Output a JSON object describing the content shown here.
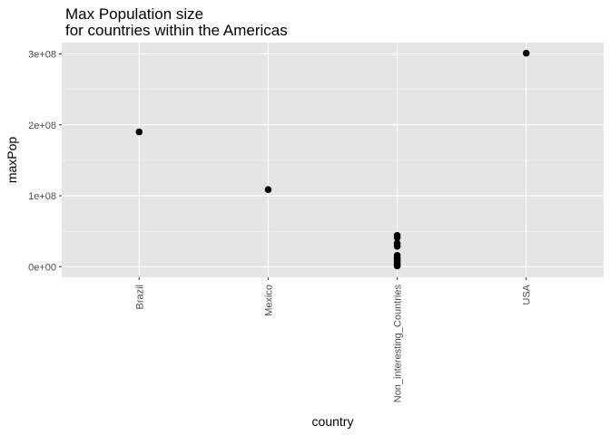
{
  "chart_data": {
    "type": "scatter",
    "title_line1": "Max Population size",
    "title_line2": "for countries within the Americas",
    "xlabel": "country",
    "ylabel": "maxPop",
    "categories": [
      "Brazil",
      "Mexico",
      "Non_interesting_Countries",
      "USA"
    ],
    "y_ticks": [
      0,
      100000000,
      200000000,
      300000000
    ],
    "y_tick_labels": [
      "0e+00",
      "1e+08",
      "2e+08",
      "3e+08"
    ],
    "ylim": [
      -15000000,
      316000000
    ],
    "grid": true,
    "points": [
      {
        "x": "Brazil",
        "y": 190000000
      },
      {
        "x": "Mexico",
        "y": 108700000
      },
      {
        "x": "Non_interesting_Countries",
        "y": 44000000
      },
      {
        "x": "Non_interesting_Countries",
        "y": 41000000
      },
      {
        "x": "Non_interesting_Countries",
        "y": 33000000
      },
      {
        "x": "Non_interesting_Countries",
        "y": 28700000
      },
      {
        "x": "Non_interesting_Countries",
        "y": 16000000
      },
      {
        "x": "Non_interesting_Countries",
        "y": 13000000
      },
      {
        "x": "Non_interesting_Countries",
        "y": 11500000
      },
      {
        "x": "Non_interesting_Countries",
        "y": 9000000
      },
      {
        "x": "Non_interesting_Countries",
        "y": 6500000
      },
      {
        "x": "Non_interesting_Countries",
        "y": 4000000
      },
      {
        "x": "Non_interesting_Countries",
        "y": 2000000
      },
      {
        "x": "Non_interesting_Countries",
        "y": 1000000
      },
      {
        "x": "USA",
        "y": 301000000
      }
    ],
    "colors": {
      "panel": "#e5e5e5",
      "grid_major": "#ffffff",
      "grid_minor": "#f2f2f2",
      "point": "#000000"
    }
  }
}
